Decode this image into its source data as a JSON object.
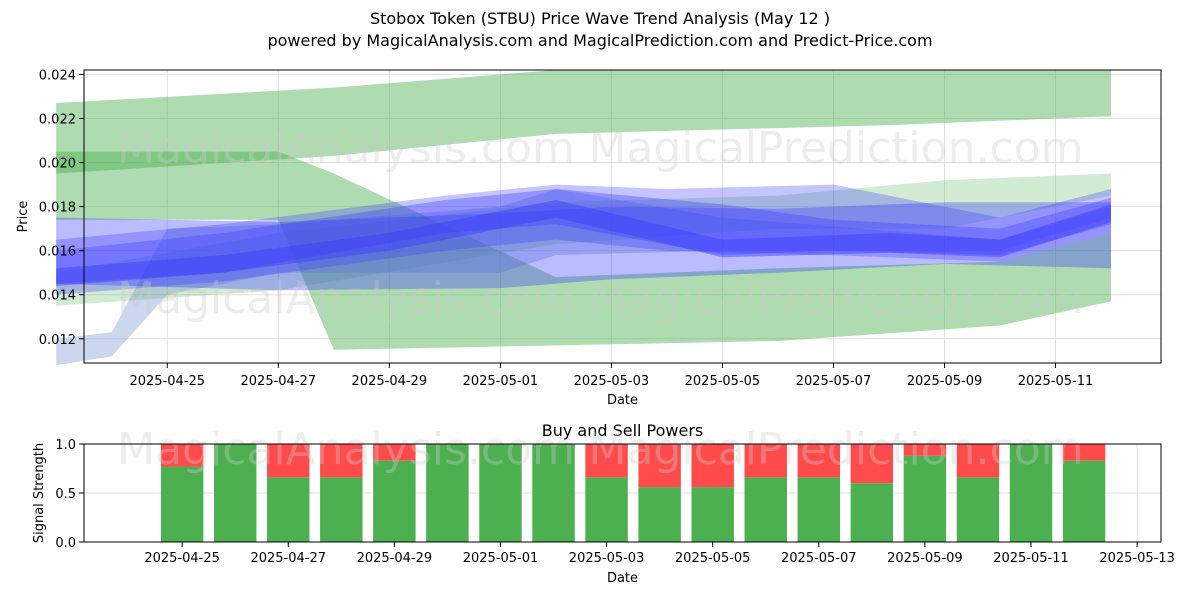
{
  "title_line1": "Stobox Token (STBU) Price Wave Trend Analysis (May 12 )",
  "title_line2": "powered by MagicalAnalysis.com and MagicalPrediction.com and Predict-Price.com",
  "watermarks": [
    "MagicalAnalysis.com",
    "MagicalPrediction.com"
  ],
  "colors": {
    "green_band": "#4caf50",
    "blue_band": "#3b3bff",
    "slate_band": "#6a8cc8",
    "buy": "#4caf50",
    "sell": "#ff4b4b",
    "grid": "#e0e0e0"
  },
  "chart_data": [
    {
      "type": "area",
      "title": "",
      "xlabel": "Date",
      "ylabel": "Price",
      "ylim": [
        0.0109,
        0.0242
      ],
      "xlim": [
        "2025-04-23",
        "2025-05-13"
      ],
      "x_ticks": [
        "2025-04-25",
        "2025-04-27",
        "2025-04-29",
        "2025-05-01",
        "2025-05-03",
        "2025-05-05",
        "2025-05-07",
        "2025-05-09",
        "2025-05-11"
      ],
      "y_ticks": [
        "0.012",
        "0.014",
        "0.016",
        "0.018",
        "0.020",
        "0.022",
        "0.024"
      ],
      "grid": true,
      "series": [
        {
          "color": "green",
          "opacity": 0.45,
          "x": [
            "2025-04-23",
            "2025-04-28",
            "2025-05-02",
            "2025-05-08",
            "2025-05-12"
          ],
          "upper": [
            0.0227,
            0.0234,
            0.0242,
            0.0242,
            0.0242
          ],
          "lower": [
            0.0195,
            0.0203,
            0.0213,
            0.0217,
            0.0221
          ]
        },
        {
          "color": "green",
          "opacity": 0.45,
          "x": [
            "2025-04-23",
            "2025-04-27",
            "2025-04-28",
            "2025-05-02",
            "2025-05-06",
            "2025-05-10",
            "2025-05-12"
          ],
          "upper": [
            0.0205,
            0.0205,
            0.0195,
            0.0148,
            0.0152,
            0.0155,
            0.0168
          ],
          "lower": [
            0.0174,
            0.0174,
            0.0115,
            0.0117,
            0.0119,
            0.0126,
            0.0137
          ]
        },
        {
          "color": "green",
          "opacity": 0.25,
          "x": [
            "2025-04-23",
            "2025-04-27",
            "2025-05-02",
            "2025-05-06",
            "2025-05-09",
            "2025-05-12"
          ],
          "upper": [
            0.015,
            0.0168,
            0.0182,
            0.0185,
            0.0192,
            0.0195
          ],
          "lower": [
            0.0135,
            0.0142,
            0.0163,
            0.017,
            0.017,
            0.0185
          ]
        },
        {
          "color": "slate",
          "opacity": 0.35,
          "x": [
            "2025-04-23",
            "2025-04-24",
            "2025-04-25",
            "2025-04-27",
            "2025-05-01",
            "2025-05-02",
            "2025-05-05",
            "2025-05-10",
            "2025-05-12"
          ],
          "upper": [
            0.012,
            0.0123,
            0.017,
            0.0172,
            0.018,
            0.0188,
            0.0175,
            0.0165,
            0.018
          ],
          "lower": [
            0.0108,
            0.0112,
            0.014,
            0.015,
            0.015,
            0.0158,
            0.016,
            0.016,
            0.0175
          ]
        },
        {
          "color": "blue",
          "opacity": 0.35,
          "x": [
            "2025-04-23",
            "2025-04-26",
            "2025-04-30",
            "2025-05-02",
            "2025-05-05",
            "2025-05-07",
            "2025-05-10",
            "2025-05-12"
          ],
          "upper": [
            0.016,
            0.0168,
            0.0183,
            0.0188,
            0.0181,
            0.0174,
            0.017,
            0.0184
          ],
          "lower": [
            0.0145,
            0.015,
            0.0168,
            0.0172,
            0.0158,
            0.016,
            0.0158,
            0.0172
          ]
        },
        {
          "color": "blue",
          "opacity": 0.35,
          "x": [
            "2025-04-23",
            "2025-04-27",
            "2025-05-01",
            "2025-05-03",
            "2025-05-06",
            "2025-05-09",
            "2025-05-12"
          ],
          "upper": [
            0.0175,
            0.0173,
            0.0177,
            0.018,
            0.0179,
            0.0182,
            0.0182
          ],
          "lower": [
            0.0145,
            0.0142,
            0.0143,
            0.0147,
            0.015,
            0.0154,
            0.0152
          ]
        },
        {
          "color": "blue",
          "opacity": 0.3,
          "x": [
            "2025-04-23",
            "2025-04-26",
            "2025-04-30",
            "2025-05-02",
            "2025-05-04",
            "2025-05-07",
            "2025-05-10",
            "2025-05-12"
          ],
          "upper": [
            0.0165,
            0.0172,
            0.0185,
            0.019,
            0.0188,
            0.019,
            0.0175,
            0.0188
          ],
          "lower": [
            0.014,
            0.0146,
            0.016,
            0.0165,
            0.016,
            0.0158,
            0.0155,
            0.0168
          ]
        },
        {
          "color": "blue",
          "opacity": 0.45,
          "x": [
            "2025-04-23",
            "2025-04-26",
            "2025-04-29",
            "2025-05-02",
            "2025-05-05",
            "2025-05-08",
            "2025-05-10",
            "2025-05-12"
          ],
          "upper": [
            0.0152,
            0.0158,
            0.0168,
            0.0183,
            0.0165,
            0.0168,
            0.0165,
            0.0181
          ],
          "lower": [
            0.0144,
            0.015,
            0.016,
            0.0175,
            0.0157,
            0.0159,
            0.0157,
            0.0173
          ]
        }
      ]
    },
    {
      "type": "bar",
      "title": "Buy and Sell Powers",
      "xlabel": "Date",
      "ylabel": "Signal Strength",
      "ylim": [
        0,
        1.0
      ],
      "x_ticks": [
        "2025-04-25",
        "2025-04-27",
        "2025-04-29",
        "2025-05-01",
        "2025-05-03",
        "2025-05-05",
        "2025-05-07",
        "2025-05-09",
        "2025-05-11",
        "2025-05-13"
      ],
      "y_ticks": [
        "0.0",
        "0.5",
        "1.0"
      ],
      "grid": true,
      "categories": [
        "2025-04-25",
        "2025-04-26",
        "2025-04-27",
        "2025-04-28",
        "2025-04-29",
        "2025-04-30",
        "2025-05-01",
        "2025-05-02",
        "2025-05-03",
        "2025-05-04",
        "2025-05-05",
        "2025-05-06",
        "2025-05-07",
        "2025-05-08",
        "2025-05-09",
        "2025-05-10",
        "2025-05-11",
        "2025-05-12"
      ],
      "series": [
        {
          "values": [
            0.77,
            1.0,
            0.66,
            0.66,
            0.83,
            1.0,
            1.0,
            1.0,
            0.66,
            0.56,
            0.56,
            0.66,
            0.66,
            0.6,
            0.88,
            0.66,
            1.0,
            0.83
          ]
        },
        {
          "values": [
            0.23,
            0.0,
            0.34,
            0.34,
            0.17,
            0.0,
            0.0,
            0.0,
            0.34,
            0.44,
            0.44,
            0.34,
            0.34,
            0.4,
            0.12,
            0.34,
            0.0,
            0.17
          ]
        }
      ]
    }
  ]
}
